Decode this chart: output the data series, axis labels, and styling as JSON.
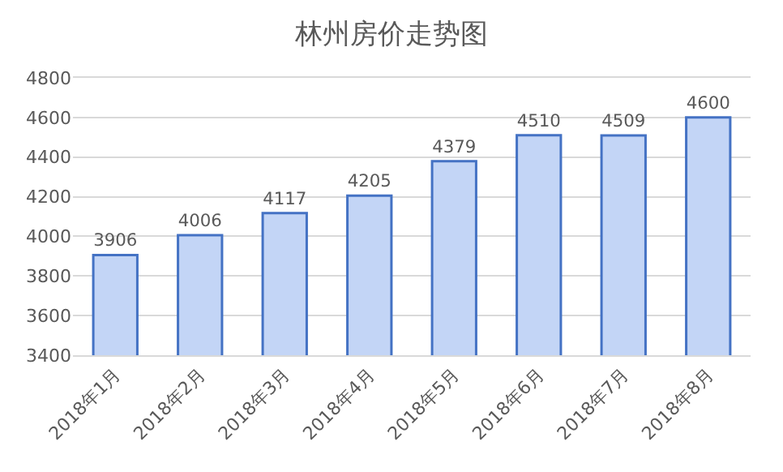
{
  "chart_data": {
    "type": "bar",
    "title": "林州房价走势图",
    "categories": [
      "2018年1月",
      "2018年2月",
      "2018年3月",
      "2018年4月",
      "2018年5月",
      "2018年6月",
      "2018年7月",
      "2018年8月"
    ],
    "values": [
      3906,
      4006,
      4117,
      4205,
      4379,
      4510,
      4509,
      4600
    ],
    "color": "#c3d5f6",
    "ylim": [
      3400,
      4800
    ],
    "yticks": [
      3400,
      3600,
      3800,
      4000,
      4200,
      4400,
      4600,
      4800
    ],
    "grid": "y",
    "data_labels": true
  }
}
